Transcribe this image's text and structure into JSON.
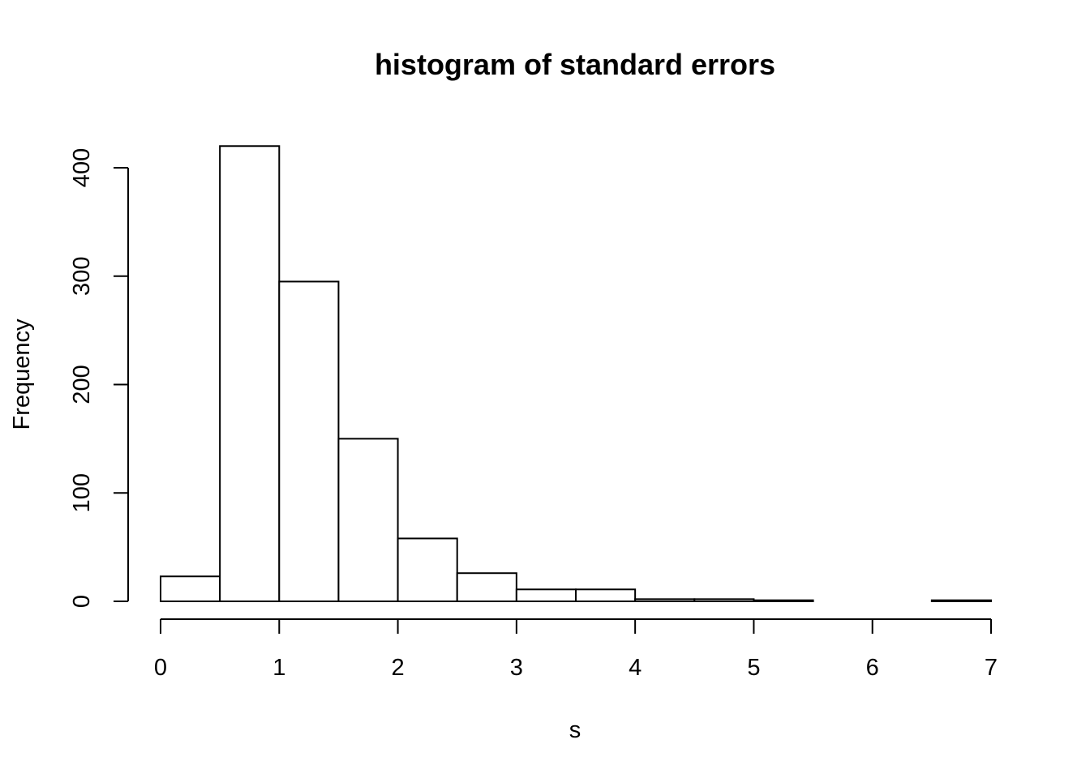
{
  "chart_data": {
    "type": "bar",
    "title": "histogram of standard errors",
    "xlabel": "s",
    "ylabel": "Frequency",
    "bins": [
      {
        "x0": 0.0,
        "x1": 0.5,
        "count": 23
      },
      {
        "x0": 0.5,
        "x1": 1.0,
        "count": 420
      },
      {
        "x0": 1.0,
        "x1": 1.5,
        "count": 295
      },
      {
        "x0": 1.5,
        "x1": 2.0,
        "count": 150
      },
      {
        "x0": 2.0,
        "x1": 2.5,
        "count": 58
      },
      {
        "x0": 2.5,
        "x1": 3.0,
        "count": 26
      },
      {
        "x0": 3.0,
        "x1": 3.5,
        "count": 11
      },
      {
        "x0": 3.5,
        "x1": 4.0,
        "count": 11
      },
      {
        "x0": 4.0,
        "x1": 4.5,
        "count": 2
      },
      {
        "x0": 4.5,
        "x1": 5.0,
        "count": 2
      },
      {
        "x0": 5.0,
        "x1": 5.5,
        "count": 1
      },
      {
        "x0": 5.5,
        "x1": 6.0,
        "count": 0
      },
      {
        "x0": 6.0,
        "x1": 6.5,
        "count": 0
      },
      {
        "x0": 6.5,
        "x1": 7.0,
        "count": 1
      }
    ],
    "xlim": [
      0,
      7
    ],
    "ylim": [
      0,
      420
    ],
    "xticks": [
      "0",
      "1",
      "2",
      "3",
      "4",
      "5",
      "6",
      "7"
    ],
    "yticks": [
      "0",
      "100",
      "200",
      "300",
      "400"
    ],
    "grid": false,
    "colors": {
      "bar_fill": "#ffffff",
      "bar_stroke": "#000000"
    }
  }
}
